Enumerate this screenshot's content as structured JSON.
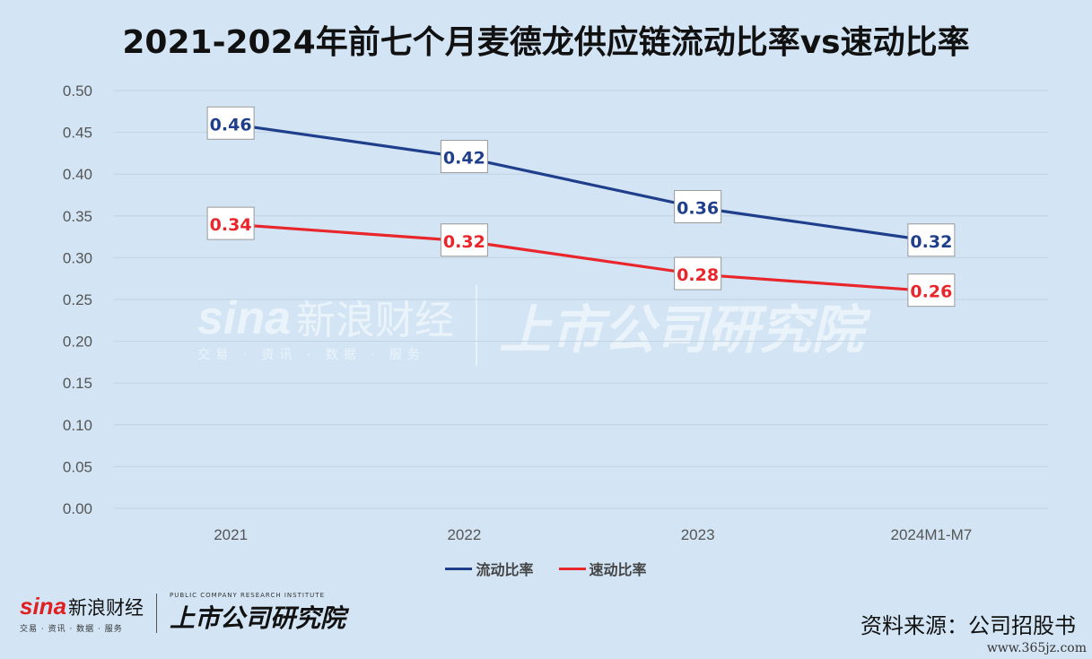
{
  "title": "2021-2024年前七个月麦德龙供应链流动比率vs速动比率",
  "chart_data": {
    "type": "line",
    "title": "2021-2024年前七个月麦德龙供应链流动比率vs速动比率",
    "categories": [
      "2021",
      "2022",
      "2023",
      "2024M1-M7"
    ],
    "series": [
      {
        "name": "流动比率",
        "values": [
          0.46,
          0.42,
          0.36,
          0.32
        ],
        "labels": [
          "0.46",
          "0.42",
          "0.36",
          "0.32"
        ],
        "color": "#1f3f8c"
      },
      {
        "name": "速动比率",
        "values": [
          0.34,
          0.32,
          0.28,
          0.26
        ],
        "labels": [
          "0.34",
          "0.32",
          "0.28",
          "0.26"
        ],
        "color": "#e8262b"
      }
    ],
    "y_ticks": [
      "0.00",
      "0.05",
      "0.10",
      "0.15",
      "0.20",
      "0.25",
      "0.30",
      "0.35",
      "0.40",
      "0.45",
      "0.50"
    ],
    "ylim": [
      0,
      0.5
    ],
    "grid": true,
    "legend": "bottom"
  },
  "colors": {
    "background": "#d3e5f4",
    "grid": "#c2d3e2"
  },
  "watermark": {
    "sina": "sina",
    "sina_cn": "新浪财经",
    "sina_sub": "交易 · 资讯 · 数据 · 服务",
    "institute": "上市公司研究院"
  },
  "footer": {
    "sina": "sina",
    "sina_cn": "新浪财经",
    "sina_sub": "交易 · 资讯 · 数据 · 服务",
    "institute": "上市公司研究院",
    "institute_en": "PUBLIC COMPANY RESEARCH INSTITUTE",
    "source": "资料来源：公司招股书",
    "url": "www.365jz.com"
  }
}
